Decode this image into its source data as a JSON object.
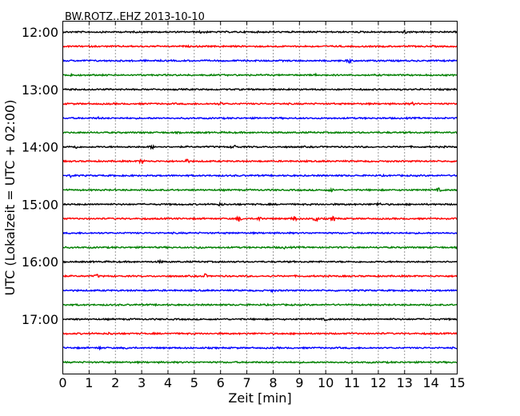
{
  "chart_data": {
    "type": "line",
    "title": "BW.ROTZ..EHZ 2013-10-10",
    "xlabel": "Zeit  [min]",
    "ylabel": "UTC (Lokalzeit = UTC + 02:00)",
    "xlim": [
      0,
      15
    ],
    "x_ticks": [
      "0",
      "1",
      "2",
      "3",
      "4",
      "5",
      "6",
      "7",
      "8",
      "9",
      "10",
      "11",
      "12",
      "13",
      "14",
      "15"
    ],
    "y_ticks": [
      "12:00",
      "13:00",
      "14:00",
      "15:00",
      "16:00",
      "17:00"
    ],
    "grid": "vertical dotted",
    "trace_colors": [
      "#000000",
      "#ff0000",
      "#0000ff",
      "#008000"
    ],
    "traces": [
      {
        "start": "12:00",
        "events": [
          {
            "t": 5.3,
            "amp": 2
          },
          {
            "t": 13.0,
            "amp": 2
          }
        ]
      },
      {
        "start": "12:15",
        "events": []
      },
      {
        "start": "12:30",
        "events": [
          {
            "t": 10.9,
            "amp": 2.5
          }
        ]
      },
      {
        "start": "12:45",
        "events": [
          {
            "t": 0.3,
            "amp": 2
          },
          {
            "t": 9.7,
            "amp": 2.5
          }
        ]
      },
      {
        "start": "13:00",
        "events": []
      },
      {
        "start": "13:15",
        "events": [
          {
            "t": 6.0,
            "amp": 1.5
          },
          {
            "t": 13.3,
            "amp": 1.5
          }
        ]
      },
      {
        "start": "13:30",
        "events": [
          {
            "t": 1.4,
            "amp": 1.5
          }
        ]
      },
      {
        "start": "13:45",
        "events": []
      },
      {
        "start": "14:00",
        "events": [
          {
            "t": 0.5,
            "amp": 2
          },
          {
            "t": 3.4,
            "amp": 2
          },
          {
            "t": 6.5,
            "amp": 2.5
          }
        ]
      },
      {
        "start": "14:15",
        "events": [
          {
            "t": 3.0,
            "amp": 3
          },
          {
            "t": 4.7,
            "amp": 3
          }
        ]
      },
      {
        "start": "14:30",
        "events": [
          {
            "t": 0.3,
            "amp": 1.5
          }
        ]
      },
      {
        "start": "14:45",
        "events": [
          {
            "t": 10.2,
            "amp": 2
          },
          {
            "t": 14.3,
            "amp": 2
          }
        ]
      },
      {
        "start": "15:00",
        "events": [
          {
            "t": 6.0,
            "amp": 2
          },
          {
            "t": 12.0,
            "amp": 2
          }
        ]
      },
      {
        "start": "15:15",
        "events": [
          {
            "t": 6.7,
            "amp": 3
          },
          {
            "t": 7.5,
            "amp": 2.5
          },
          {
            "t": 8.8,
            "amp": 3
          },
          {
            "t": 9.6,
            "amp": 4
          },
          {
            "t": 10.3,
            "amp": 3
          }
        ]
      },
      {
        "start": "15:30",
        "events": []
      },
      {
        "start": "15:45",
        "events": [
          {
            "t": 5.2,
            "amp": 1.5
          },
          {
            "t": 8.4,
            "amp": 1.5
          }
        ]
      },
      {
        "start": "16:00",
        "events": [
          {
            "t": 3.7,
            "amp": 1.5
          }
        ]
      },
      {
        "start": "16:15",
        "events": [
          {
            "t": 1.3,
            "amp": 2
          },
          {
            "t": 5.4,
            "amp": 2.5
          }
        ]
      },
      {
        "start": "16:30",
        "events": [
          {
            "t": 8.0,
            "amp": 1.5
          }
        ]
      },
      {
        "start": "16:45",
        "events": []
      },
      {
        "start": "17:00",
        "events": [
          {
            "t": 10.0,
            "amp": 1.5
          }
        ]
      },
      {
        "start": "17:15",
        "events": [
          {
            "t": 1.8,
            "amp": 1.5
          }
        ]
      },
      {
        "start": "17:30",
        "events": [
          {
            "t": 1.4,
            "amp": 1.5
          },
          {
            "t": 2.5,
            "amp": 1.5
          }
        ]
      },
      {
        "start": "17:45",
        "events": []
      }
    ]
  }
}
